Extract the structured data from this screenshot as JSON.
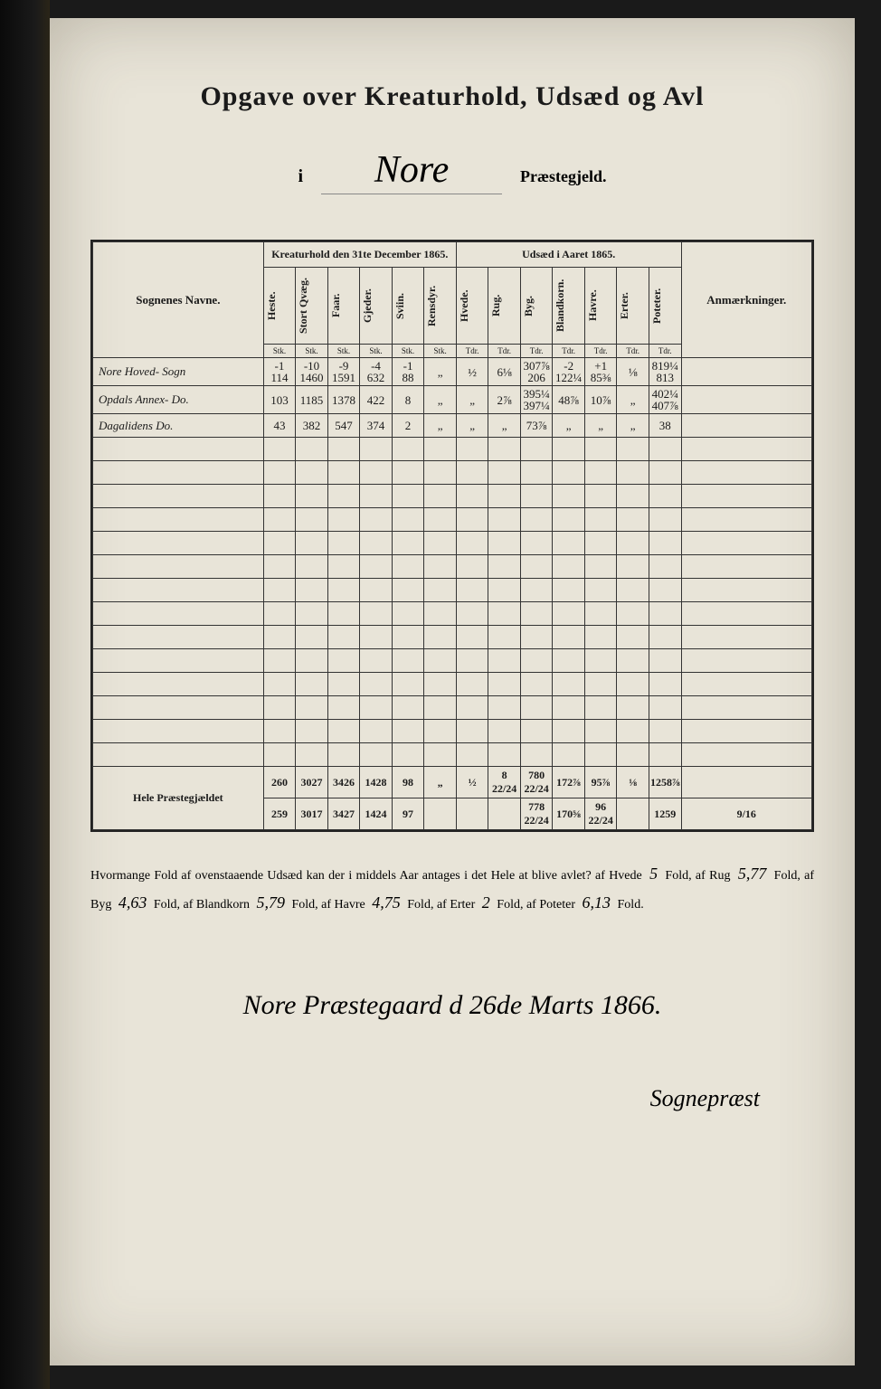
{
  "title": "Opgave over Kreaturhold, Udsæd og Avl",
  "subtitle": {
    "prefix": "i",
    "parish": "Nore",
    "suffix": "Præstegjeld."
  },
  "tableHead": {
    "group1": "Kreaturhold den 31te December 1865.",
    "group2": "Udsæd i Aaret 1865.",
    "sognLabel": "Sognenes Navne.",
    "remarks": "Anmærkninger.",
    "cols": [
      "Heste.",
      "Stort Qvæg.",
      "Faar.",
      "Gjeder.",
      "Sviin.",
      "Rensdyr.",
      "Hvede.",
      "Rug.",
      "Byg.",
      "Blandkorn.",
      "Havre.",
      "Erter.",
      "Poteter."
    ],
    "units": [
      "Stk.",
      "Stk.",
      "Stk.",
      "Stk.",
      "Stk.",
      "Stk.",
      "Tdr.",
      "Tdr.",
      "Tdr.",
      "Tdr.",
      "Tdr.",
      "Tdr.",
      "Tdr."
    ]
  },
  "rows": [
    {
      "name": "Nore Hoved- Sogn",
      "cells": [
        "-1\n114",
        "-10\n1460",
        "-9\n1591",
        "-4\n632",
        "-1\n88",
        "„",
        "½",
        "6⅛",
        "307⅞\n206",
        "-2\n122¼",
        "+1\n85⅜",
        "⅛",
        "819¼\n813"
      ]
    },
    {
      "name": "Opdals Annex- Do.",
      "cells": [
        "103",
        "1185",
        "1378",
        "422",
        "8",
        "„",
        "„",
        "2⅞",
        "395¼\n397¼",
        "48⅞",
        "10⅞",
        "„",
        "402¼\n407⅞"
      ]
    },
    {
      "name": "Dagalidens Do.",
      "cells": [
        "43",
        "382",
        "547",
        "374",
        "2",
        "„",
        "„",
        "„",
        "73⅞",
        "„",
        "„",
        "„",
        "38"
      ]
    }
  ],
  "emptyRows": 14,
  "total": {
    "label": "Hele Præstegjældet",
    "line1": [
      "260",
      "3027",
      "3426",
      "1428",
      "98",
      "„",
      "½",
      "8 22/24",
      "780 22/24",
      "172⅞",
      "95⅞",
      "⅛",
      "1258⅞"
    ],
    "line2": [
      "259",
      "3017",
      "3427",
      "1424",
      "97",
      "",
      "",
      "",
      "778 22/24",
      "170⅝",
      "96 22/24",
      "",
      "1259",
      "9/16"
    ]
  },
  "footer": {
    "template1": "Hvormange Fold af ovenstaaende Udsæd kan der i middels Aar antages i det Hele at blive avlet? af Hvede",
    "hvede": "5",
    "t2": "Fold, af Rug",
    "rug": "5,77",
    "t3": "Fold, af Byg",
    "byg": "4,63",
    "t4": "Fold, af Blandkorn",
    "bland": "5,79",
    "t5": "Fold, af Havre",
    "havre": "4,75",
    "t6": "Fold, af Erter",
    "erter": "2",
    "t7": "Fold, af Poteter",
    "poteter": "6,13",
    "t8": "Fold."
  },
  "signature": {
    "place_date": "Nore Præstegaard d 26de Marts 1866.",
    "signer": "Sognepræst"
  }
}
